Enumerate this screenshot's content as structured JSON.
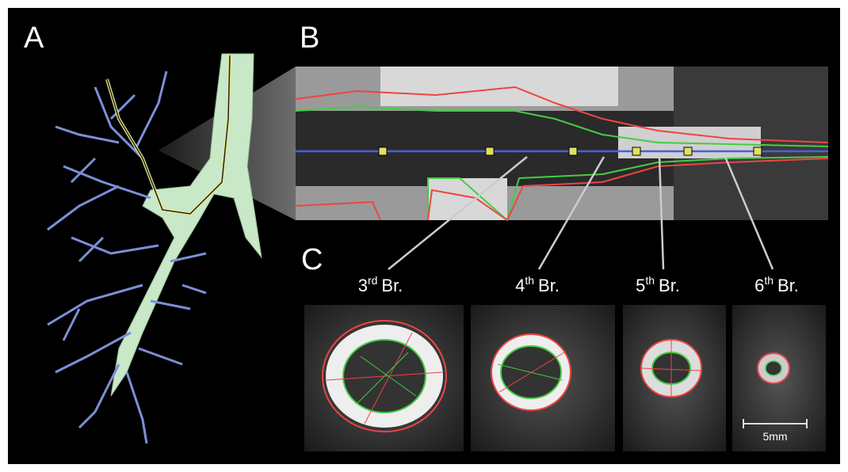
{
  "panels": {
    "a": {
      "label": "A"
    },
    "b": {
      "label": "B"
    },
    "c": {
      "label": "C"
    }
  },
  "branches": [
    {
      "number": "3",
      "suffix": "rd",
      "text": "Br."
    },
    {
      "number": "4",
      "suffix": "th",
      "text": "Br."
    },
    {
      "number": "5",
      "suffix": "th",
      "text": "Br."
    },
    {
      "number": "6",
      "suffix": "th",
      "text": "Br."
    }
  ],
  "scale_bar": {
    "label": "5mm"
  }
}
